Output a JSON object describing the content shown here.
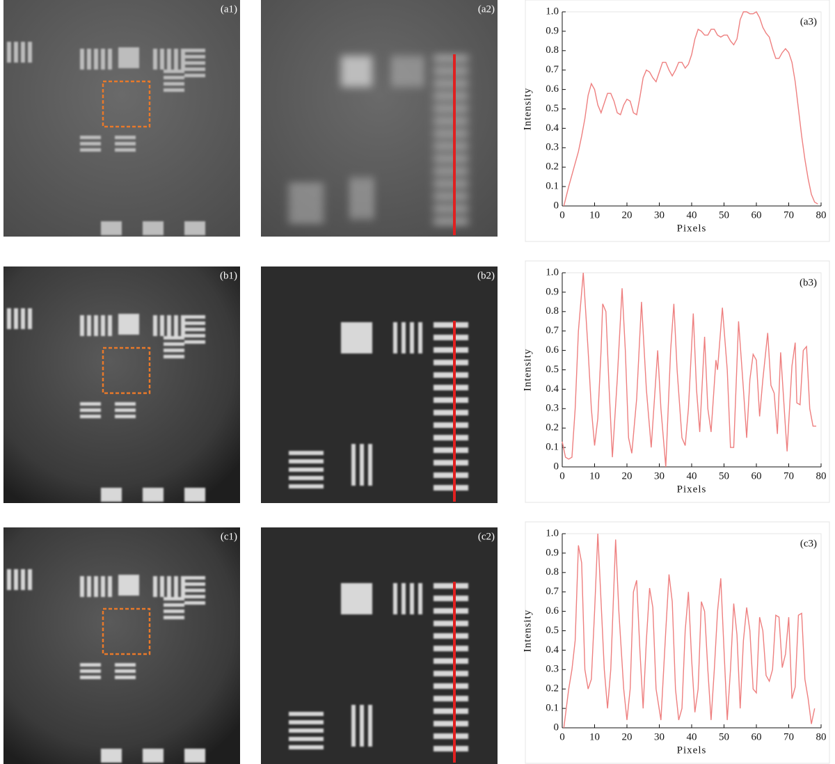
{
  "image_panels": [
    {
      "label": "(a1)"
    },
    {
      "label": "(a2)"
    },
    {
      "label": "(b1)"
    },
    {
      "label": "(b2)"
    },
    {
      "label": "(c1)"
    },
    {
      "label": "(c2)"
    }
  ],
  "chart_data": [
    {
      "type": "line",
      "annotation": "(a3)",
      "x_label": "Pixels",
      "y_label": "Intensity",
      "color": "#ee7f7f",
      "xlim": [
        0,
        80
      ],
      "ylim": [
        0,
        1
      ],
      "xticks": [
        0,
        10,
        20,
        30,
        40,
        50,
        60,
        70,
        80
      ],
      "yticks": [
        0,
        0.1,
        0.2,
        0.3,
        0.4,
        0.5,
        0.6,
        0.7,
        0.8,
        0.9,
        {
          "value": 1,
          "label": "1.0"
        }
      ],
      "x": [
        0.5,
        2,
        4,
        5,
        6,
        7,
        8,
        9,
        10,
        11,
        12,
        13,
        14,
        15,
        16,
        17,
        18,
        19,
        20,
        21,
        22,
        23,
        24,
        25,
        26,
        27,
        28,
        29,
        30,
        31,
        32,
        33,
        34,
        35,
        36,
        37,
        38,
        39,
        40,
        41,
        42,
        43,
        44,
        45,
        46,
        47,
        48,
        49,
        50,
        51,
        52,
        53,
        54,
        55,
        56,
        57,
        58,
        59,
        60,
        61,
        62,
        63,
        64,
        65,
        66,
        67,
        68,
        69,
        70,
        71,
        72,
        73,
        74,
        75,
        76,
        77,
        78,
        79
      ],
      "values": [
        0,
        0.1,
        0.22,
        0.28,
        0.36,
        0.45,
        0.57,
        0.63,
        0.6,
        0.52,
        0.48,
        0.53,
        0.58,
        0.58,
        0.54,
        0.48,
        0.47,
        0.52,
        0.55,
        0.54,
        0.48,
        0.47,
        0.56,
        0.66,
        0.7,
        0.69,
        0.66,
        0.64,
        0.69,
        0.74,
        0.74,
        0.7,
        0.67,
        0.7,
        0.74,
        0.74,
        0.71,
        0.73,
        0.78,
        0.86,
        0.91,
        0.9,
        0.88,
        0.88,
        0.91,
        0.91,
        0.88,
        0.87,
        0.88,
        0.88,
        0.85,
        0.83,
        0.86,
        0.96,
        1,
        1,
        0.99,
        0.99,
        1,
        0.97,
        0.92,
        0.89,
        0.87,
        0.81,
        0.76,
        0.76,
        0.79,
        0.81,
        0.79,
        0.74,
        0.64,
        0.5,
        0.36,
        0.24,
        0.14,
        0.06,
        0.02,
        0.01
      ]
    },
    {
      "type": "line",
      "annotation": "(b3)",
      "x_label": "Pixels",
      "y_label": "Intensity",
      "color": "#ee7f7f",
      "xlim": [
        0,
        80
      ],
      "ylim": [
        0,
        1
      ],
      "xticks": [
        0,
        10,
        20,
        30,
        40,
        50,
        60,
        70,
        80
      ],
      "yticks": [
        0,
        0.1,
        0.2,
        0.3,
        0.4,
        0.5,
        0.6,
        0.7,
        0.8,
        0.9,
        {
          "value": 1,
          "label": "1.0"
        }
      ],
      "x": [
        0,
        1,
        2,
        3,
        4,
        5,
        6.5,
        8,
        9,
        10,
        11,
        12,
        12.5,
        13.5,
        14.5,
        15.5,
        17,
        18.5,
        19.5,
        20.5,
        21.5,
        23,
        24.5,
        26,
        27.5,
        29.5,
        30.5,
        32,
        33.5,
        34.5,
        35.5,
        37,
        38,
        39,
        40.5,
        41.5,
        42.5,
        44,
        45,
        46,
        47.5,
        48,
        49.5,
        51,
        52,
        53,
        54.5,
        56,
        57,
        58,
        59,
        60,
        61,
        62,
        63.5,
        64.5,
        65.5,
        66.5,
        67.5,
        69,
        69.5,
        71,
        72,
        72.5,
        73.5,
        74.5,
        75.5,
        76.5,
        77.5,
        78.5
      ],
      "values": [
        0.13,
        0.05,
        0.04,
        0.05,
        0.3,
        0.7,
        1,
        0.6,
        0.3,
        0.11,
        0.25,
        0.6,
        0.84,
        0.8,
        0.4,
        0.05,
        0.45,
        0.92,
        0.6,
        0.15,
        0.07,
        0.35,
        0.85,
        0.4,
        0.1,
        0.6,
        0.3,
        0,
        0.6,
        0.84,
        0.5,
        0.15,
        0.11,
        0.3,
        0.79,
        0.4,
        0.18,
        0.67,
        0.3,
        0.18,
        0.55,
        0.5,
        0.82,
        0.5,
        0.1,
        0.1,
        0.75,
        0.4,
        0.15,
        0.45,
        0.58,
        0.55,
        0.26,
        0.45,
        0.69,
        0.42,
        0.38,
        0.17,
        0.59,
        0.2,
        0.08,
        0.52,
        0.64,
        0.33,
        0.32,
        0.6,
        0.62,
        0.3,
        0.21,
        0.21
      ]
    },
    {
      "type": "line",
      "annotation": "(c3)",
      "x_label": "Pixels",
      "y_label": "Intensity",
      "color": "#ee7f7f",
      "xlim": [
        0,
        80
      ],
      "ylim": [
        0,
        1
      ],
      "xticks": [
        0,
        10,
        20,
        30,
        40,
        50,
        60,
        70,
        80
      ],
      "yticks": [
        0,
        0.1,
        0.2,
        0.3,
        0.4,
        0.5,
        0.6,
        0.7,
        0.8,
        0.9,
        {
          "value": 1,
          "label": "1.0"
        }
      ],
      "x": [
        0.5,
        2,
        3,
        4,
        5,
        6,
        7,
        8,
        9,
        10,
        11,
        12,
        13,
        14,
        15,
        16.5,
        17.5,
        19,
        20,
        21,
        22,
        23,
        24,
        25,
        26,
        27,
        28,
        29,
        30.5,
        32,
        33,
        34,
        35,
        36,
        37,
        38,
        39,
        40,
        41,
        42,
        43,
        44,
        45,
        46,
        47,
        48,
        49,
        50,
        51,
        52,
        53,
        54,
        55,
        56,
        57,
        58,
        59,
        60,
        61,
        62,
        63,
        64,
        65,
        66,
        67,
        68,
        69,
        70,
        71,
        72,
        73,
        74,
        75,
        76,
        77,
        78
      ],
      "values": [
        0,
        0.2,
        0.3,
        0.45,
        0.94,
        0.85,
        0.3,
        0.2,
        0.25,
        0.6,
        1,
        0.65,
        0.3,
        0.1,
        0.3,
        0.97,
        0.6,
        0.2,
        0.04,
        0.2,
        0.7,
        0.76,
        0.4,
        0.1,
        0.45,
        0.72,
        0.62,
        0.2,
        0.04,
        0.5,
        0.79,
        0.65,
        0.2,
        0.04,
        0.1,
        0.5,
        0.7,
        0.35,
        0.08,
        0.2,
        0.65,
        0.6,
        0.3,
        0.04,
        0.3,
        0.6,
        0.77,
        0.4,
        0.04,
        0.3,
        0.64,
        0.48,
        0.1,
        0.45,
        0.62,
        0.5,
        0.2,
        0.18,
        0.57,
        0.5,
        0.27,
        0.24,
        0.3,
        0.58,
        0.57,
        0.31,
        0.38,
        0.57,
        0.15,
        0.21,
        0.58,
        0.59,
        0.25,
        0.15,
        0.02,
        0.1
      ]
    }
  ]
}
